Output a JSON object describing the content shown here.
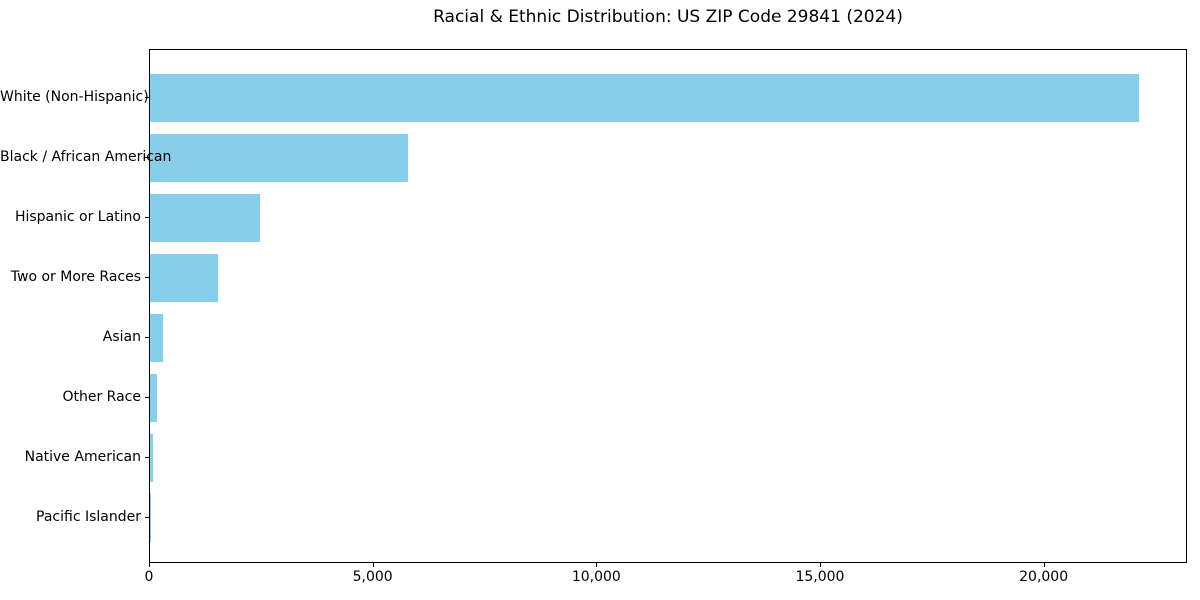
{
  "chart_data": {
    "type": "bar",
    "orientation": "horizontal",
    "title": "Racial & Ethnic Distribution: US ZIP Code 29841 (2024)",
    "categories": [
      "White (Non-Hispanic)",
      "Black / African American",
      "Hispanic or Latino",
      "Two or More Races",
      "Asian",
      "Other Race",
      "Native American",
      "Pacific Islander"
    ],
    "values": [
      22100,
      5770,
      2450,
      1510,
      285,
      155,
      65,
      10
    ],
    "bar_color": "#87CEEB",
    "axis_color": "#000000",
    "text_color": "#000000",
    "xlabel": "",
    "ylabel": "",
    "xlim": [
      0,
      23205
    ],
    "xticks": {
      "values": [
        0,
        5000,
        10000,
        15000,
        20000
      ],
      "labels": [
        "0",
        "5,000",
        "10,000",
        "15,000",
        "20,000"
      ]
    },
    "grid": false,
    "legend_position": "none"
  }
}
